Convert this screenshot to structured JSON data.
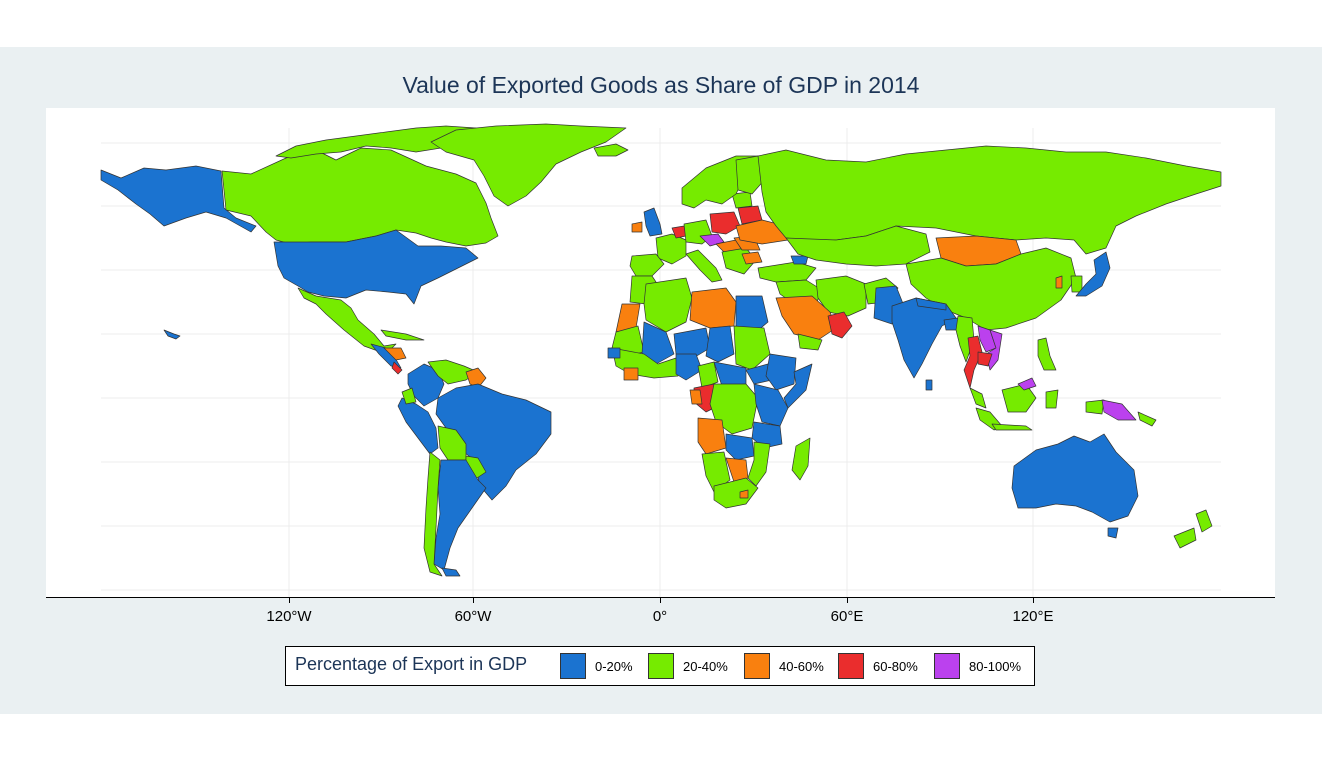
{
  "title": "Value of Exported Goods as Share of GDP in 2014",
  "x_axis": {
    "ticks": [
      "120°W",
      "60°W",
      "0°",
      "60°E",
      "120°E"
    ]
  },
  "legend": {
    "title": "Percentage of Export in GDP",
    "items": [
      {
        "label": "0-20%",
        "color": "#1b73d0"
      },
      {
        "label": "20-40%",
        "color": "#76eb00"
      },
      {
        "label": "40-60%",
        "color": "#f9800f"
      },
      {
        "label": "60-80%",
        "color": "#ea2d2d"
      },
      {
        "label": "80-100%",
        "color": "#bb41ee"
      }
    ]
  },
  "colors": {
    "background_panel": "#eaf0f2",
    "title": "#1c3557",
    "gridline": "#ebebeb",
    "border": "#333333"
  }
}
